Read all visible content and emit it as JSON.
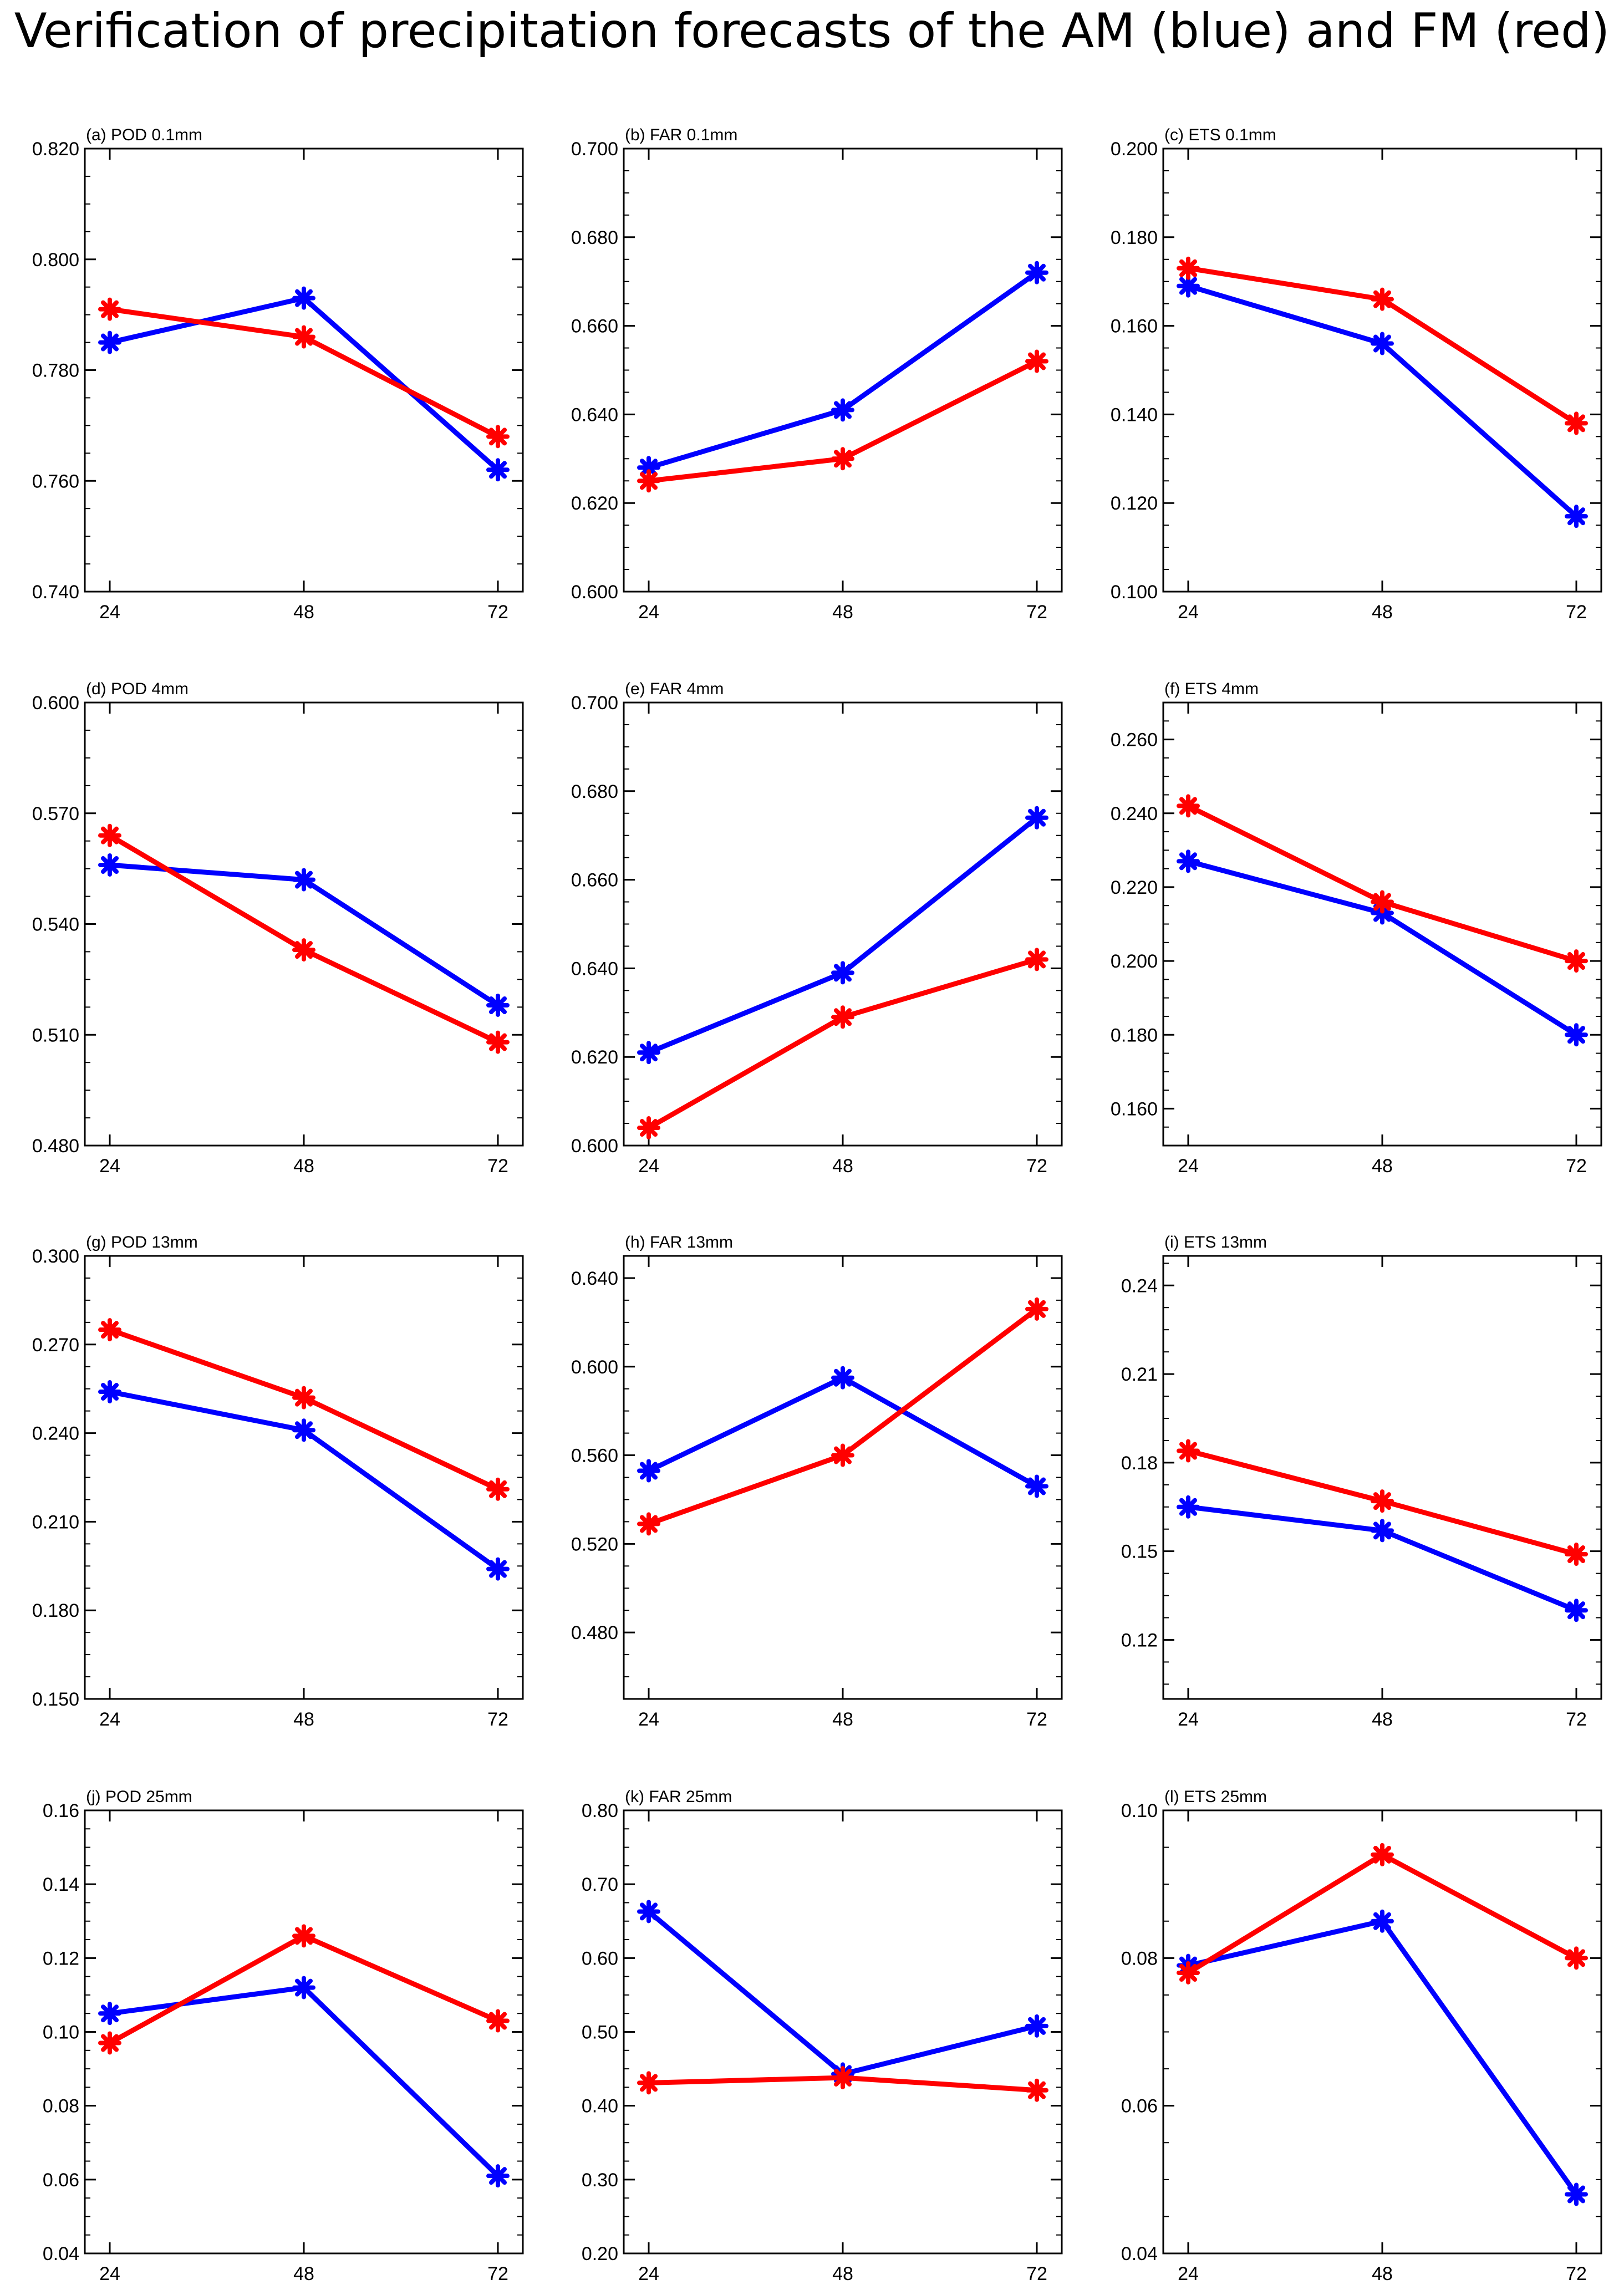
{
  "title": "Verification of precipitation forecasts of the AM (blue) and FM (red)",
  "series_colors": {
    "AM": "#0000ff",
    "FM": "#ff0000"
  },
  "marker": "asterisk",
  "chart_data": [
    {
      "type": "line",
      "label": "(a) POD 0.1mm",
      "x": [
        24,
        48,
        72
      ],
      "xticks": [
        "24",
        "48",
        "72"
      ],
      "ylim": [
        0.74,
        0.82
      ],
      "yticks": [
        "0.740",
        "0.760",
        "0.780",
        "0.800",
        "0.820"
      ],
      "series": [
        {
          "values": [
            0.785,
            0.793,
            0.762
          ]
        },
        {
          "values": [
            0.791,
            0.786,
            0.768
          ]
        }
      ]
    },
    {
      "type": "line",
      "label": "(b) FAR 0.1mm",
      "x": [
        24,
        48,
        72
      ],
      "xticks": [
        "24",
        "48",
        "72"
      ],
      "ylim": [
        0.6,
        0.7
      ],
      "yticks": [
        "0.600",
        "0.620",
        "0.640",
        "0.660",
        "0.680",
        "0.700"
      ],
      "series": [
        {
          "values": [
            0.628,
            0.641,
            0.672
          ]
        },
        {
          "values": [
            0.625,
            0.63,
            0.652
          ]
        }
      ]
    },
    {
      "type": "line",
      "label": "(c) ETS 0.1mm",
      "x": [
        24,
        48,
        72
      ],
      "xticks": [
        "24",
        "48",
        "72"
      ],
      "ylim": [
        0.1,
        0.2
      ],
      "yticks": [
        "0.100",
        "0.120",
        "0.140",
        "0.160",
        "0.180",
        "0.200"
      ],
      "series": [
        {
          "values": [
            0.169,
            0.156,
            0.117
          ]
        },
        {
          "values": [
            0.173,
            0.166,
            0.138
          ]
        }
      ]
    },
    {
      "type": "line",
      "label": "(d) POD 4mm",
      "x": [
        24,
        48,
        72
      ],
      "xticks": [
        "24",
        "48",
        "72"
      ],
      "ylim": [
        0.48,
        0.6
      ],
      "yticks": [
        "0.480",
        "0.510",
        "0.540",
        "0.570",
        "0.600"
      ],
      "series": [
        {
          "values": [
            0.556,
            0.552,
            0.518
          ]
        },
        {
          "values": [
            0.564,
            0.533,
            0.508
          ]
        }
      ]
    },
    {
      "type": "line",
      "label": "(e) FAR 4mm",
      "x": [
        24,
        48,
        72
      ],
      "xticks": [
        "24",
        "48",
        "72"
      ],
      "ylim": [
        0.6,
        0.7
      ],
      "yticks": [
        "0.600",
        "0.620",
        "0.640",
        "0.660",
        "0.680",
        "0.700"
      ],
      "series": [
        {
          "values": [
            0.621,
            0.639,
            0.674
          ]
        },
        {
          "values": [
            0.604,
            0.629,
            0.642
          ]
        }
      ]
    },
    {
      "type": "line",
      "label": "(f) ETS 4mm",
      "x": [
        24,
        48,
        72
      ],
      "xticks": [
        "24",
        "48",
        "72"
      ],
      "ylim": [
        0.15,
        0.27
      ],
      "yticks": [
        "0.160",
        "0.180",
        "0.200",
        "0.220",
        "0.240",
        "0.260"
      ],
      "series": [
        {
          "values": [
            0.227,
            0.213,
            0.18
          ]
        },
        {
          "values": [
            0.242,
            0.216,
            0.2
          ]
        }
      ]
    },
    {
      "type": "line",
      "label": "(g) POD 13mm",
      "x": [
        24,
        48,
        72
      ],
      "xticks": [
        "24",
        "48",
        "72"
      ],
      "ylim": [
        0.15,
        0.3
      ],
      "yticks": [
        "0.150",
        "0.180",
        "0.210",
        "0.240",
        "0.270",
        "0.300"
      ],
      "series": [
        {
          "values": [
            0.254,
            0.241,
            0.194
          ]
        },
        {
          "values": [
            0.275,
            0.252,
            0.221
          ]
        }
      ]
    },
    {
      "type": "line",
      "label": "(h) FAR 13mm",
      "x": [
        24,
        48,
        72
      ],
      "xticks": [
        "24",
        "48",
        "72"
      ],
      "ylim": [
        0.45,
        0.65
      ],
      "yticks": [
        "0.480",
        "0.520",
        "0.560",
        "0.600",
        "0.640"
      ],
      "series": [
        {
          "values": [
            0.553,
            0.595,
            0.546
          ]
        },
        {
          "values": [
            0.529,
            0.56,
            0.626
          ]
        }
      ]
    },
    {
      "type": "line",
      "label": "(i) ETS 13mm",
      "x": [
        24,
        48,
        72
      ],
      "xticks": [
        "24",
        "48",
        "72"
      ],
      "ylim": [
        0.1,
        0.25
      ],
      "yticks": [
        "0.12",
        "0.15",
        "0.18",
        "0.21",
        "0.24"
      ],
      "series": [
        {
          "values": [
            0.165,
            0.157,
            0.13
          ]
        },
        {
          "values": [
            0.184,
            0.167,
            0.149
          ]
        }
      ]
    },
    {
      "type": "line",
      "label": "(j) POD 25mm",
      "x": [
        24,
        48,
        72
      ],
      "xticks": [
        "24",
        "48",
        "72"
      ],
      "ylim": [
        0.04,
        0.16
      ],
      "yticks": [
        "0.04",
        "0.06",
        "0.08",
        "0.10",
        "0.12",
        "0.14",
        "0.16"
      ],
      "series": [
        {
          "values": [
            0.105,
            0.112,
            0.061
          ]
        },
        {
          "values": [
            0.097,
            0.126,
            0.103
          ]
        }
      ]
    },
    {
      "type": "line",
      "label": "(k) FAR 25mm",
      "x": [
        24,
        48,
        72
      ],
      "xticks": [
        "24",
        "48",
        "72"
      ],
      "ylim": [
        0.2,
        0.8
      ],
      "yticks": [
        "0.20",
        "0.30",
        "0.40",
        "0.50",
        "0.60",
        "0.70",
        "0.80"
      ],
      "series": [
        {
          "values": [
            0.663,
            0.443,
            0.508
          ]
        },
        {
          "values": [
            0.431,
            0.438,
            0.421
          ]
        }
      ]
    },
    {
      "type": "line",
      "label": "(l) ETS 25mm",
      "x": [
        24,
        48,
        72
      ],
      "xticks": [
        "24",
        "48",
        "72"
      ],
      "ylim": [
        0.04,
        0.1
      ],
      "yticks": [
        "0.04",
        "0.06",
        "0.08",
        "0.10"
      ],
      "series": [
        {
          "values": [
            0.079,
            0.085,
            0.048
          ]
        },
        {
          "values": [
            0.078,
            0.094,
            0.08
          ]
        }
      ]
    }
  ]
}
